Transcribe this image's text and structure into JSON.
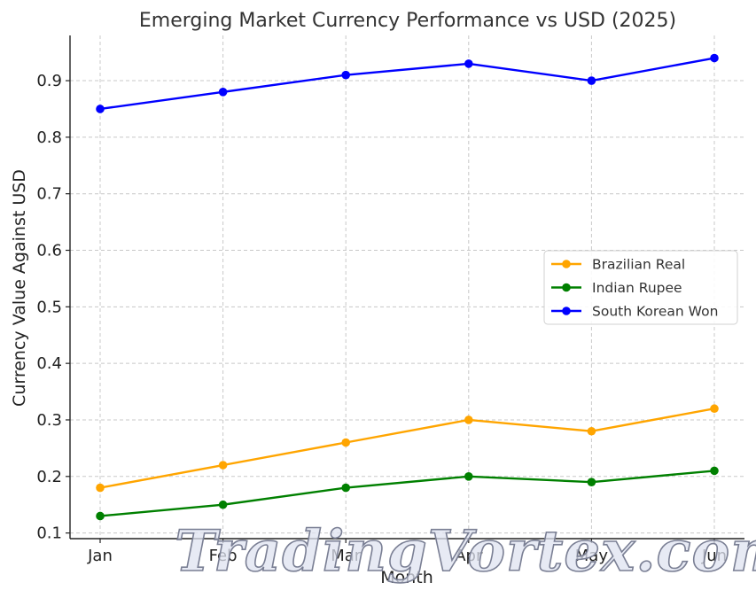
{
  "chart_data": {
    "type": "line",
    "title": "Emerging Market Currency Performance vs USD (2025)",
    "xlabel": "Month",
    "ylabel": "Currency Value Against USD",
    "categories": [
      "Jan",
      "Feb",
      "Mar",
      "Apr",
      "May",
      "Jun"
    ],
    "ylim": [
      0.09,
      0.98
    ],
    "yticks": [
      0.1,
      0.2,
      0.3,
      0.4,
      0.5,
      0.6,
      0.7,
      0.8,
      0.9
    ],
    "yticklabels": [
      "0.1",
      "0.2",
      "0.3",
      "0.4",
      "0.5",
      "0.6",
      "0.7",
      "0.8",
      "0.9"
    ],
    "grid": true,
    "legend_position": "center-right",
    "series": [
      {
        "name": "Brazilian Real",
        "color": "#ffa500",
        "values": [
          0.18,
          0.22,
          0.26,
          0.3,
          0.28,
          0.32
        ]
      },
      {
        "name": "Indian Rupee",
        "color": "#008000",
        "values": [
          0.13,
          0.15,
          0.18,
          0.2,
          0.19,
          0.21
        ]
      },
      {
        "name": "South Korean Won",
        "color": "#0000ff",
        "values": [
          0.85,
          0.88,
          0.91,
          0.93,
          0.9,
          0.94
        ]
      }
    ]
  },
  "watermark": "TradingVortex.com"
}
